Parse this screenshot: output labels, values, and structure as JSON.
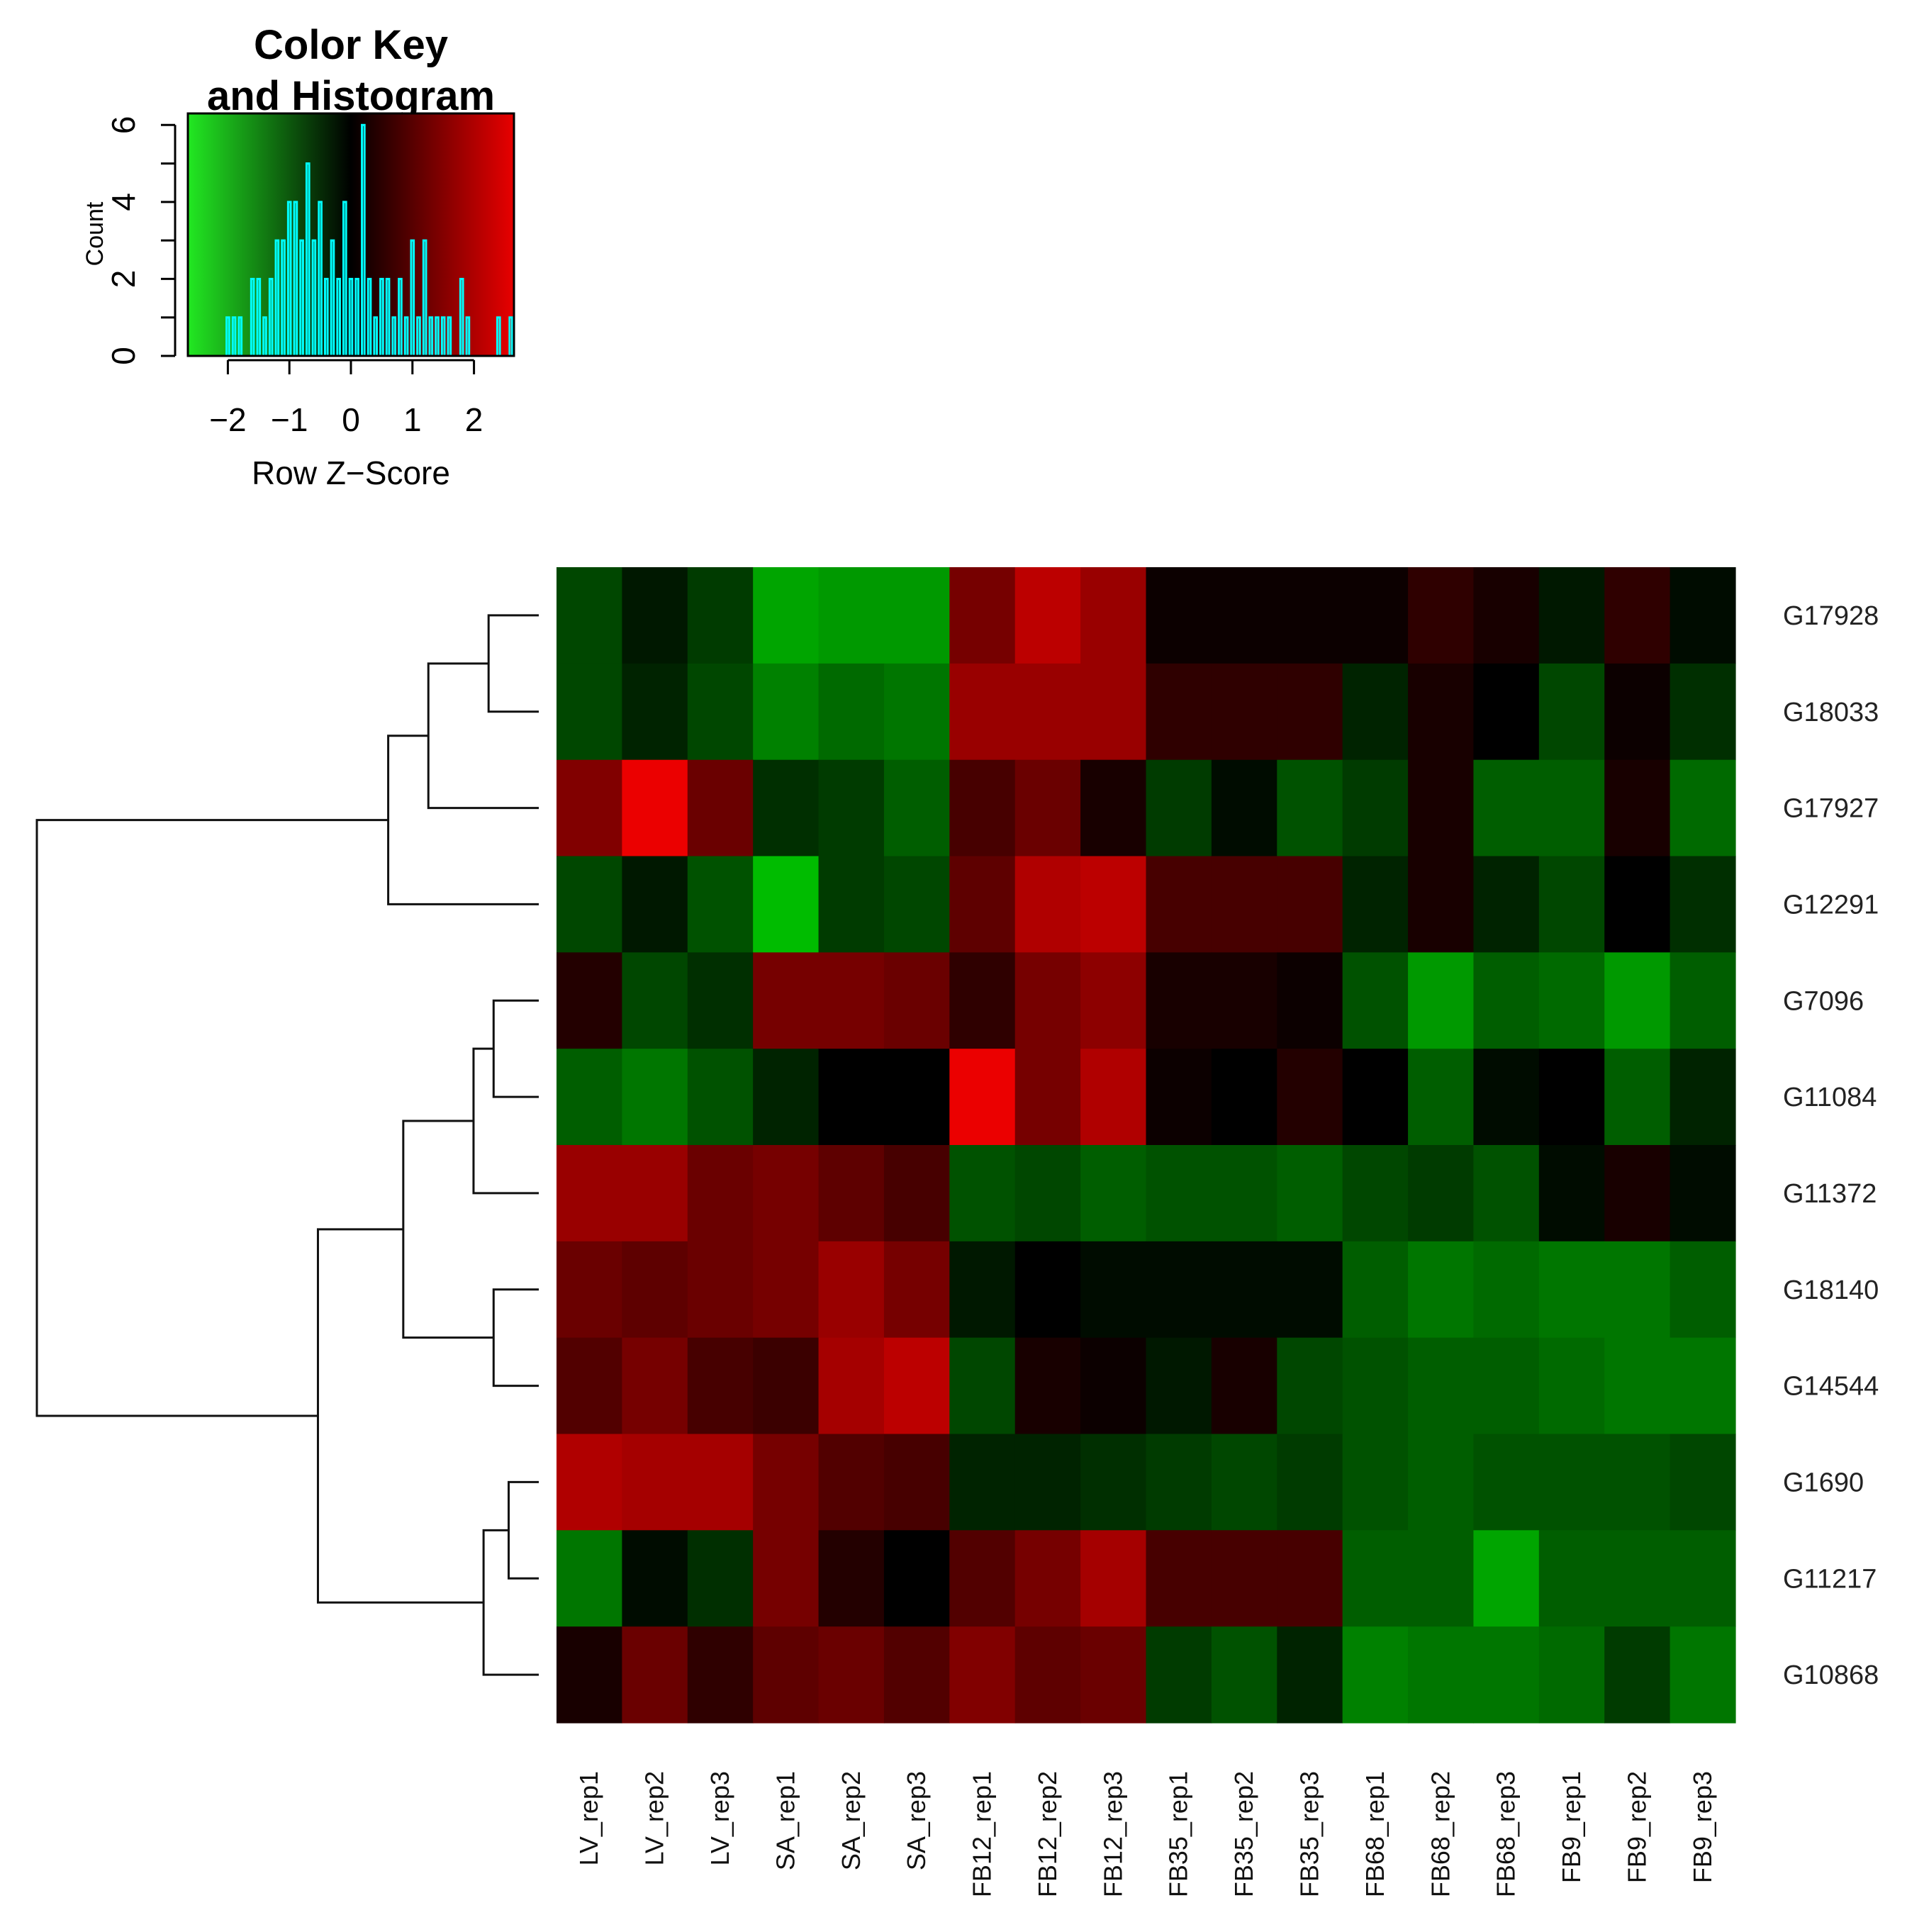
{
  "chart_data": {
    "type": "heatmap",
    "color_key": {
      "title_line1": "Color Key",
      "title_line2": "and Histogram",
      "xlabel": "Row Z−Score",
      "ylabel": "Count",
      "x_ticks": [
        "−2",
        "−1",
        "0",
        "1",
        "2"
      ],
      "x_tick_values": [
        -2,
        -1,
        0,
        1,
        2
      ],
      "y_ticks": [
        "0",
        "2",
        "4",
        "6"
      ],
      "y_tick_values": [
        0,
        2,
        4,
        6
      ],
      "xlim": [
        -2.65,
        2.65
      ],
      "ylim": [
        0,
        6.3
      ],
      "low_color": "#00ff00",
      "mid_color": "#000000",
      "high_color": "#ff0000",
      "histogram_color": "#00ffff",
      "histogram": [
        {
          "x": -2.0,
          "count": 1
        },
        {
          "x": -1.9,
          "count": 1
        },
        {
          "x": -1.8,
          "count": 1
        },
        {
          "x": -1.6,
          "count": 2
        },
        {
          "x": -1.5,
          "count": 2
        },
        {
          "x": -1.4,
          "count": 1
        },
        {
          "x": -1.3,
          "count": 2
        },
        {
          "x": -1.2,
          "count": 3
        },
        {
          "x": -1.1,
          "count": 3
        },
        {
          "x": -1.0,
          "count": 4
        },
        {
          "x": -0.9,
          "count": 4
        },
        {
          "x": -0.8,
          "count": 3
        },
        {
          "x": -0.7,
          "count": 5
        },
        {
          "x": -0.6,
          "count": 3
        },
        {
          "x": -0.5,
          "count": 4
        },
        {
          "x": -0.4,
          "count": 2
        },
        {
          "x": -0.3,
          "count": 3
        },
        {
          "x": -0.2,
          "count": 2
        },
        {
          "x": -0.1,
          "count": 4
        },
        {
          "x": 0.0,
          "count": 2
        },
        {
          "x": 0.1,
          "count": 2
        },
        {
          "x": 0.2,
          "count": 6
        },
        {
          "x": 0.3,
          "count": 2
        },
        {
          "x": 0.4,
          "count": 1
        },
        {
          "x": 0.5,
          "count": 2
        },
        {
          "x": 0.6,
          "count": 2
        },
        {
          "x": 0.7,
          "count": 1
        },
        {
          "x": 0.8,
          "count": 2
        },
        {
          "x": 0.9,
          "count": 1
        },
        {
          "x": 1.0,
          "count": 3
        },
        {
          "x": 1.1,
          "count": 1
        },
        {
          "x": 1.2,
          "count": 3
        },
        {
          "x": 1.3,
          "count": 1
        },
        {
          "x": 1.4,
          "count": 1
        },
        {
          "x": 1.5,
          "count": 1
        },
        {
          "x": 1.6,
          "count": 1
        },
        {
          "x": 1.8,
          "count": 2
        },
        {
          "x": 1.9,
          "count": 1
        },
        {
          "x": 2.4,
          "count": 1
        },
        {
          "x": 2.6,
          "count": 1
        }
      ]
    },
    "rows": [
      "G17928",
      "G18033",
      "G17927",
      "G12291",
      "G7096",
      "G11084",
      "G11372",
      "G18140",
      "G14544",
      "G1690",
      "G11217",
      "G10868"
    ],
    "columns": [
      "LV_rep1",
      "LV_rep2",
      "LV_rep3",
      "SA_rep1",
      "SA_rep2",
      "SA_rep3",
      "FB12_rep1",
      "FB12_rep2",
      "FB12_rep3",
      "FB35_rep1",
      "FB35_rep2",
      "FB35_rep3",
      "FB68_rep1",
      "FB68_rep2",
      "FB68_rep3",
      "FB9_rep1",
      "FB9_rep2",
      "FB9_rep3"
    ],
    "values": [
      [
        -0.6,
        -0.2,
        -0.5,
        -1.4,
        -1.3,
        -1.3,
        1.0,
        1.6,
        1.3,
        0.1,
        0.1,
        0.1,
        0.1,
        0.4,
        0.2,
        -0.2,
        0.4,
        -0.1
      ],
      [
        -0.6,
        -0.3,
        -0.6,
        -1.1,
        -0.9,
        -1.0,
        1.3,
        1.3,
        1.3,
        0.4,
        0.4,
        0.4,
        -0.3,
        0.2,
        0.0,
        -0.6,
        0.1,
        -0.4
      ],
      [
        1.1,
        2.0,
        0.9,
        -0.4,
        -0.5,
        -0.8,
        0.6,
        0.9,
        0.2,
        -0.5,
        -0.1,
        -0.7,
        -0.5,
        0.2,
        -0.8,
        -0.8,
        0.2,
        -0.9
      ],
      [
        -0.6,
        -0.2,
        -0.7,
        -1.6,
        -0.5,
        -0.6,
        0.8,
        1.5,
        1.6,
        0.6,
        0.6,
        0.6,
        -0.3,
        0.2,
        -0.3,
        -0.6,
        0.0,
        -0.4
      ],
      [
        0.3,
        -0.6,
        -0.4,
        1.0,
        1.0,
        0.9,
        0.4,
        1.0,
        1.2,
        0.2,
        0.2,
        0.1,
        -0.7,
        -1.3,
        -0.8,
        -0.9,
        -1.3,
        -0.8
      ],
      [
        -0.8,
        -1.0,
        -0.7,
        -0.3,
        0.0,
        0.0,
        2.0,
        1.0,
        1.5,
        0.1,
        0.0,
        0.3,
        0.0,
        -0.8,
        -0.1,
        0.0,
        -0.8,
        -0.3
      ],
      [
        1.3,
        1.3,
        0.9,
        1.0,
        0.8,
        0.6,
        -0.7,
        -0.6,
        -0.8,
        -0.7,
        -0.7,
        -0.8,
        -0.6,
        -0.5,
        -0.7,
        -0.1,
        0.2,
        -0.1
      ],
      [
        0.9,
        0.8,
        0.9,
        1.0,
        1.3,
        1.0,
        -0.2,
        0.0,
        -0.1,
        -0.1,
        -0.1,
        -0.1,
        -0.8,
        -1.0,
        -0.9,
        -1.0,
        -1.0,
        -0.8
      ],
      [
        0.7,
        1.0,
        0.6,
        0.5,
        1.4,
        1.6,
        -0.6,
        0.2,
        0.1,
        -0.2,
        0.2,
        -0.6,
        -0.7,
        -0.8,
        -0.8,
        -0.9,
        -1.0,
        -1.0
      ],
      [
        1.5,
        1.4,
        1.4,
        1.0,
        0.7,
        0.6,
        -0.3,
        -0.3,
        -0.4,
        -0.5,
        -0.6,
        -0.5,
        -0.7,
        -0.8,
        -0.7,
        -0.7,
        -0.7,
        -0.6
      ],
      [
        -1.0,
        -0.1,
        -0.4,
        1.0,
        0.3,
        0.0,
        0.7,
        1.0,
        1.4,
        0.6,
        0.6,
        0.6,
        -0.8,
        -0.8,
        -1.4,
        -0.8,
        -0.8,
        -0.8
      ],
      [
        0.2,
        0.9,
        0.4,
        0.8,
        0.9,
        0.7,
        1.1,
        0.8,
        0.9,
        -0.5,
        -0.7,
        -0.3,
        -1.1,
        -1.0,
        -1.0,
        -0.9,
        -0.5,
        -1.0
      ]
    ],
    "row_dendrogram": {
      "merges": [
        {
          "a": "G17928",
          "b": "G18033",
          "height": 0.1
        },
        {
          "a": "G1690",
          "b": "G11217",
          "height": 0.06
        },
        {
          "a": "G7096",
          "b": "G11084",
          "height": 0.09
        },
        {
          "a": "G18140",
          "b": "G14544",
          "height": 0.09
        },
        {
          "a": "G17928+G18033",
          "b": "G17927",
          "height": 0.22
        },
        {
          "a": "G7096+G11084",
          "b": "G11372",
          "height": 0.13
        },
        {
          "a": "G1690+G11217",
          "b": "G10868",
          "height": 0.11
        },
        {
          "a": "G17928+G18033+G17927",
          "b": "G12291",
          "height": 0.3
        },
        {
          "a": "G7096+G11084+G11372",
          "b": "G18140+G14544",
          "height": 0.27
        },
        {
          "a": "G7096..G14544",
          "b": "G1690+G11217+G10868",
          "height": 0.44
        },
        {
          "a": "G17928..G12291",
          "b": "G7096..G10868",
          "height": 1.0
        }
      ]
    }
  }
}
